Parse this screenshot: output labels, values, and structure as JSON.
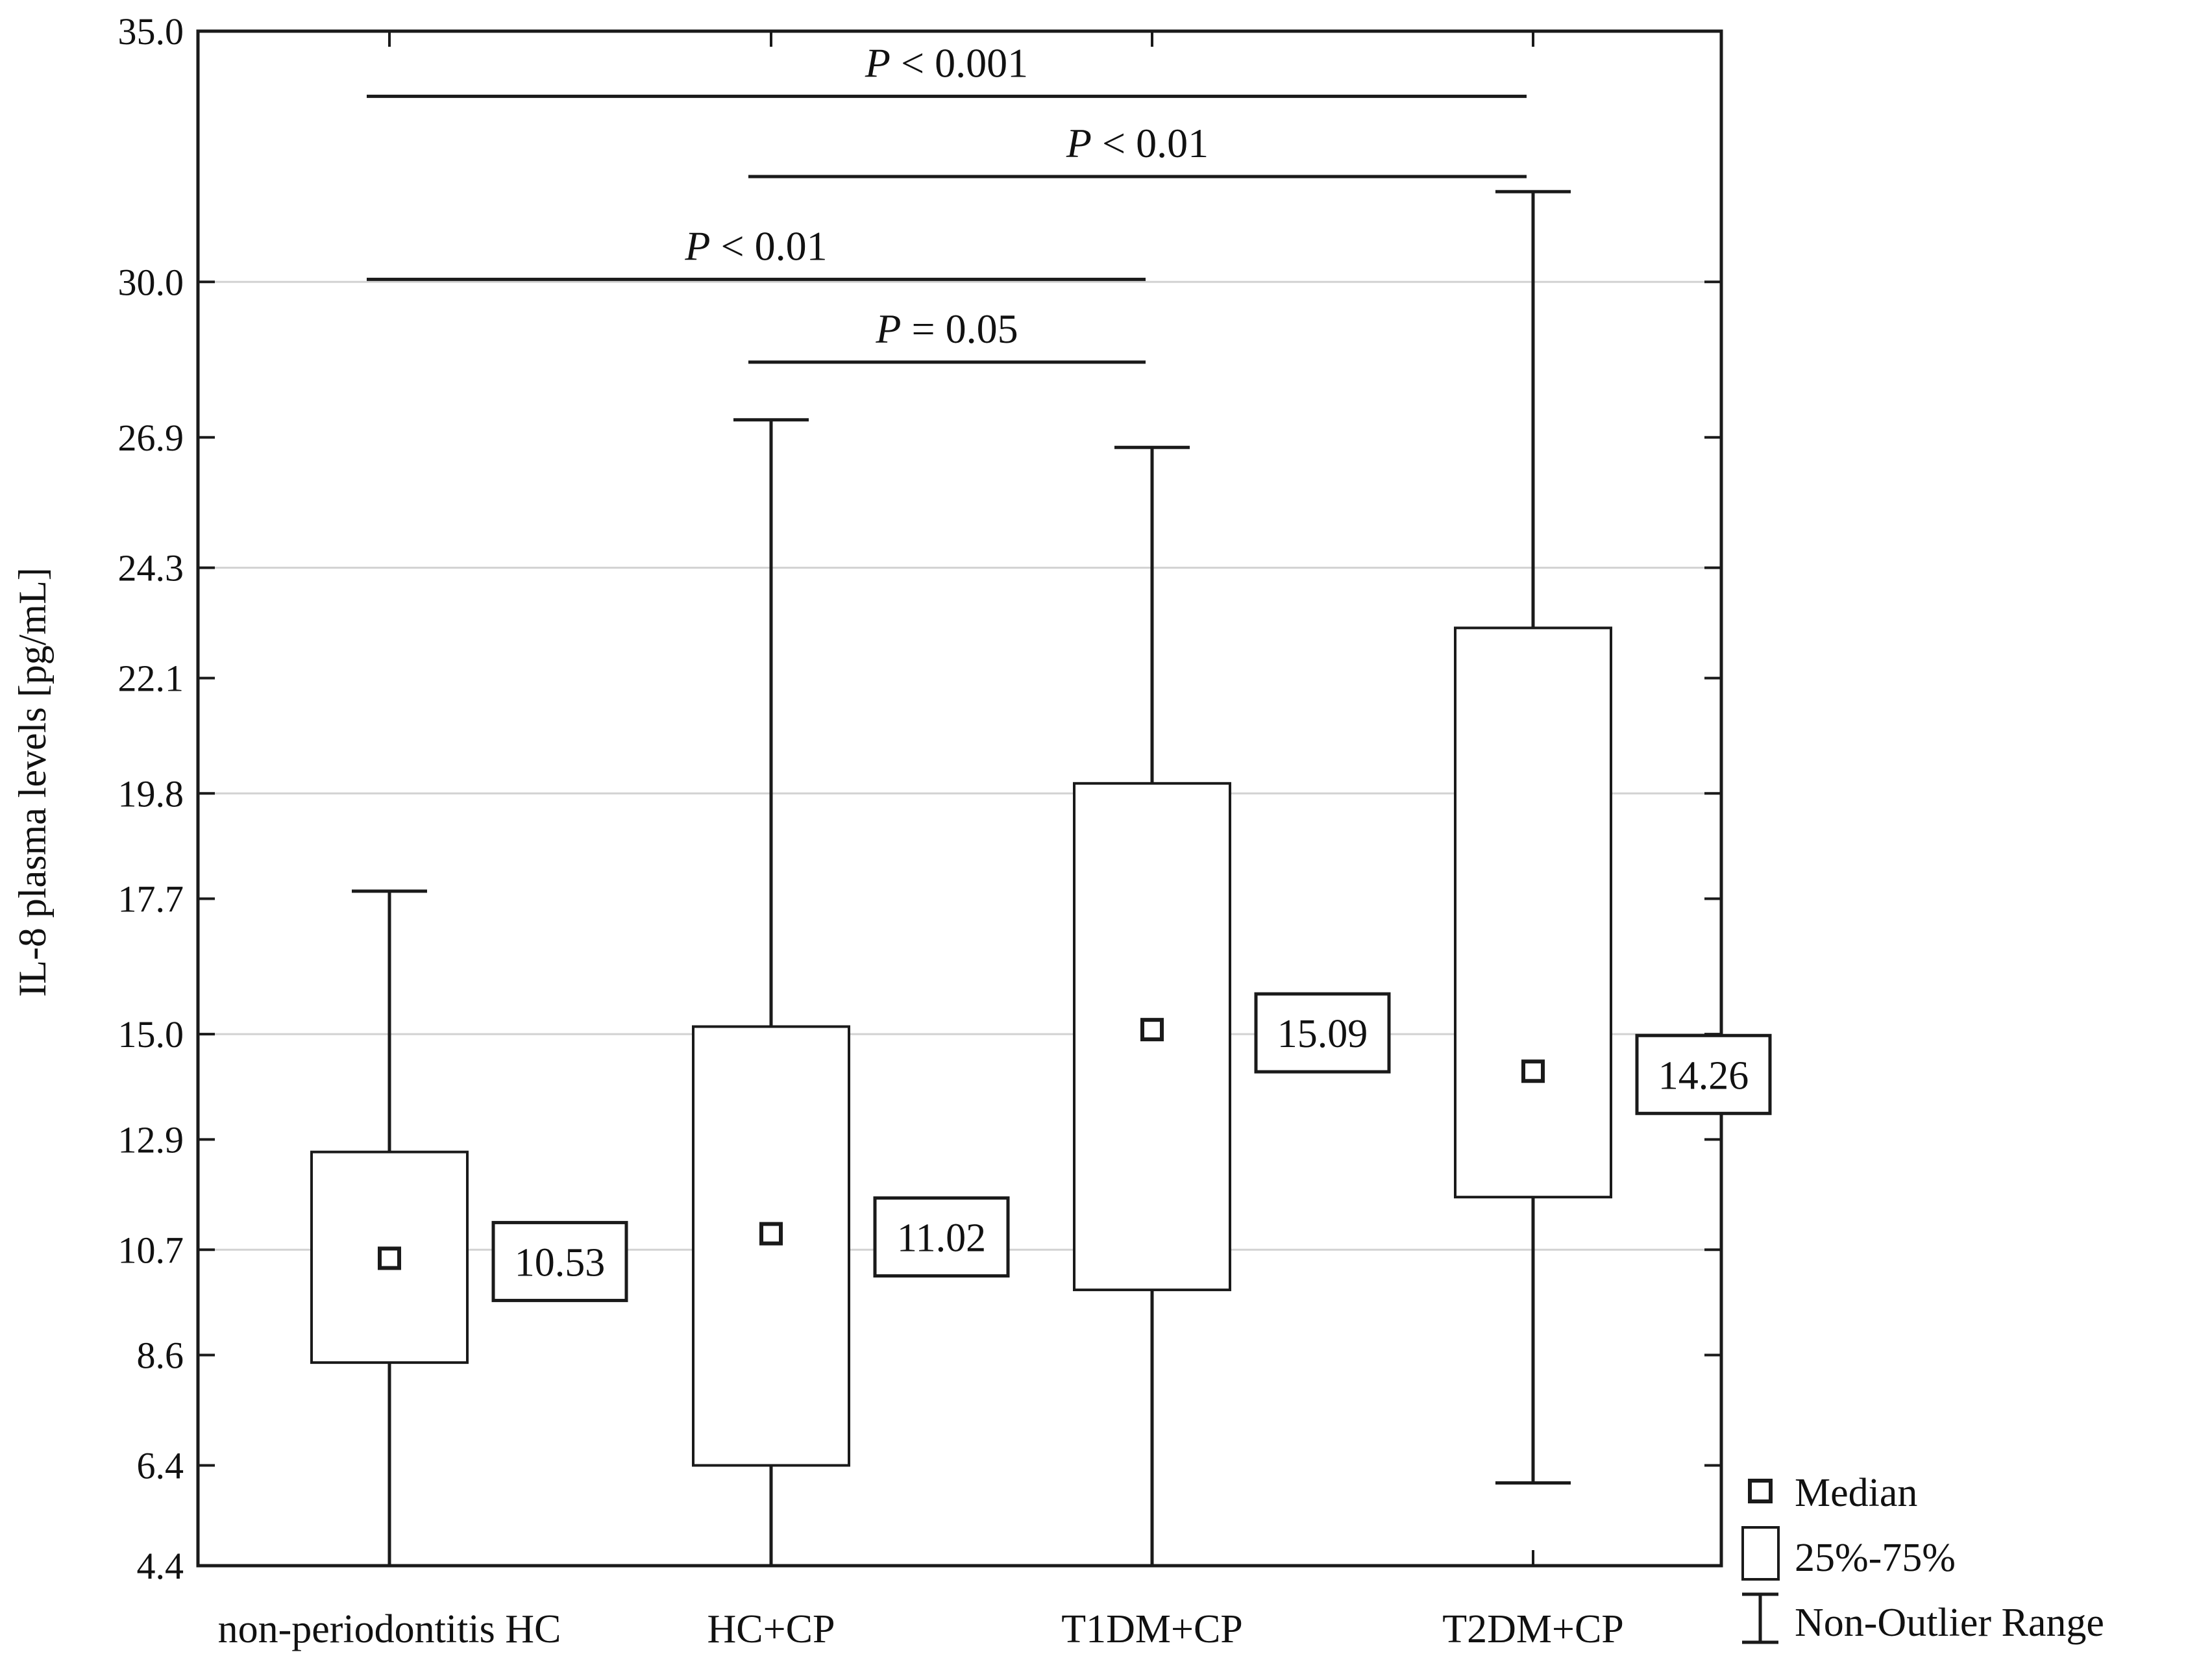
{
  "chart_data": {
    "type": "box",
    "ylabel": "IL-8 plasma levels [pg/mL]",
    "xlabel": "",
    "ylim": [
      4.4,
      35.0
    ],
    "yticks": [
      "35.0",
      "30.0",
      "26.9",
      "24.3",
      "22.1",
      "19.8",
      "17.7",
      "15.0",
      "12.9",
      "10.7",
      "8.6",
      "6.4",
      "4.4"
    ],
    "gridlines": [
      "30.0",
      "24.3",
      "19.8",
      "15.0",
      "10.7",
      "4.4"
    ],
    "categories": [
      "non-periodontitis HC",
      "HC+CP",
      "T1DM+CP",
      "T2DM+CP"
    ],
    "boxes": [
      {
        "category": "non-periodontitis HC",
        "whisker_low": 4.4,
        "q1": 8.45,
        "median": 10.53,
        "q3": 12.65,
        "whisker_high": 17.85,
        "median_label": "10.53"
      },
      {
        "category": "HC+CP",
        "whisker_low": 4.4,
        "q1": 6.4,
        "median": 11.02,
        "q3": 15.15,
        "whisker_high": 27.25,
        "median_label": "11.02"
      },
      {
        "category": "T1DM+CP",
        "whisker_low": 4.4,
        "q1": 9.9,
        "median": 15.09,
        "q3": 20.0,
        "whisker_high": 26.7,
        "median_label": "15.09"
      },
      {
        "category": "T2DM+CP",
        "whisker_low": 6.05,
        "q1": 11.75,
        "median": 14.26,
        "q3": 23.1,
        "whisker_high": 31.8,
        "median_label": "14.26"
      }
    ],
    "significance": [
      {
        "from": "non-periodontitis HC",
        "to": "T2DM+CP",
        "label_p": "P",
        "label_rest": " < 0.001",
        "y": 33.7
      },
      {
        "from": "HC+CP",
        "to": "T2DM+CP",
        "label_p": "P",
        "label_rest": " < 0.01",
        "y": 32.1
      },
      {
        "from": "non-periodontitis HC",
        "to": "T1DM+CP",
        "label_p": "P",
        "label_rest": " < 0.01",
        "y": 30.05
      },
      {
        "from": "HC+CP",
        "to": "T1DM+CP",
        "label_p": "P",
        "label_rest": " = 0.05",
        "y": 28.4
      }
    ],
    "legend": {
      "position": "bottom-right, outside plot",
      "items": [
        {
          "symbol": "median-square",
          "label": "Median"
        },
        {
          "symbol": "box",
          "label": "25%-75%"
        },
        {
          "symbol": "whisker",
          "label": "Non-Outlier Range"
        }
      ]
    },
    "grid": true
  }
}
